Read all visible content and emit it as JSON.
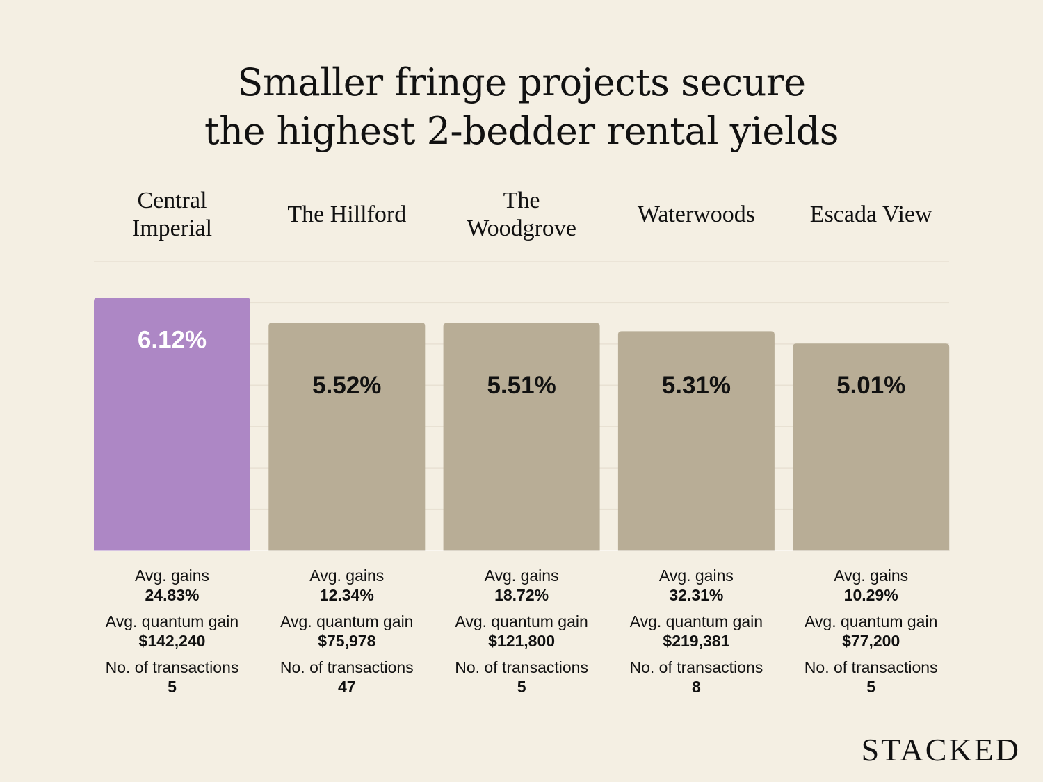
{
  "title_lines": [
    "Smaller fringe projects secure",
    "the highest 2-bedder rental yields"
  ],
  "chart_data": {
    "type": "bar",
    "title": "Smaller fringe projects secure the highest 2-bedder rental yields",
    "categories": [
      "Central Imperial",
      "The Hillford",
      "The Woodgrove",
      "Waterwoods",
      "Escada View"
    ],
    "category_lines": [
      [
        "Central",
        "Imperial"
      ],
      [
        "The Hillford"
      ],
      [
        "The",
        "Woodgrove"
      ],
      [
        "Waterwoods"
      ],
      [
        "Escada View"
      ]
    ],
    "values": [
      6.12,
      5.52,
      5.51,
      5.31,
      5.01
    ],
    "data_labels": [
      "6.12%",
      "5.52%",
      "5.51%",
      "5.31%",
      "5.01%"
    ],
    "ylim": [
      0,
      7
    ],
    "grid": true,
    "highlight_index": 0,
    "colors": {
      "highlight": "#ad87c5",
      "default": "#b8ad96",
      "background": "#f4efe3",
      "grid": "#e8e1d3"
    }
  },
  "stats": {
    "labels": {
      "gains": "Avg. gains",
      "quantum": "Avg. quantum gain",
      "transactions": "No. of transactions"
    },
    "items": [
      {
        "gains": "24.83%",
        "quantum": "$142,240",
        "transactions": "5"
      },
      {
        "gains": "12.34%",
        "quantum": "$75,978",
        "transactions": "47"
      },
      {
        "gains": "18.72%",
        "quantum": "$121,800",
        "transactions": "5"
      },
      {
        "gains": "32.31%",
        "quantum": "$219,381",
        "transactions": "8"
      },
      {
        "gains": "10.29%",
        "quantum": "$77,200",
        "transactions": "5"
      }
    ]
  },
  "logo": "STACKED"
}
